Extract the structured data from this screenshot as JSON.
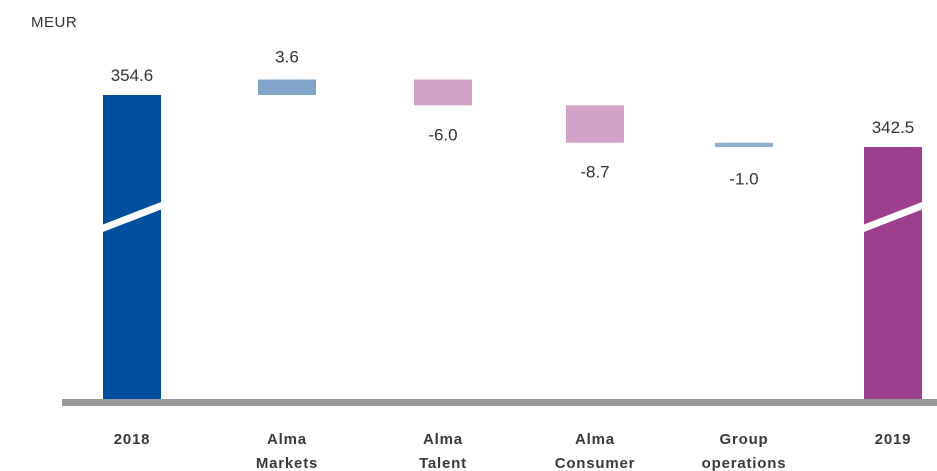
{
  "chart_data": {
    "type": "bar",
    "subtype": "waterfall",
    "unit_label": "MEUR",
    "categories": [
      [
        "2018"
      ],
      [
        "Alma",
        "Markets"
      ],
      [
        "Alma",
        "Talent"
      ],
      [
        "Alma",
        "Consumer"
      ],
      [
        "Group",
        "operations"
      ],
      [
        "2019"
      ]
    ],
    "values": [
      354.6,
      3.6,
      -6.0,
      -8.7,
      -1.0,
      342.5
    ],
    "value_labels": [
      "354.6",
      "3.6",
      "-6.0",
      "-8.7",
      "-1.0",
      "342.5"
    ],
    "kinds": [
      "total",
      "delta",
      "delta",
      "delta",
      "delta",
      "total"
    ],
    "axis_break": true,
    "colors": {
      "start_total": "#004f9e",
      "end_total": "#9c3f8f",
      "positive_delta": "#7fa6c8",
      "negative_delta": "#d4a2c9",
      "small_delta": "#8fb0cf",
      "baseline": "#999999"
    }
  }
}
